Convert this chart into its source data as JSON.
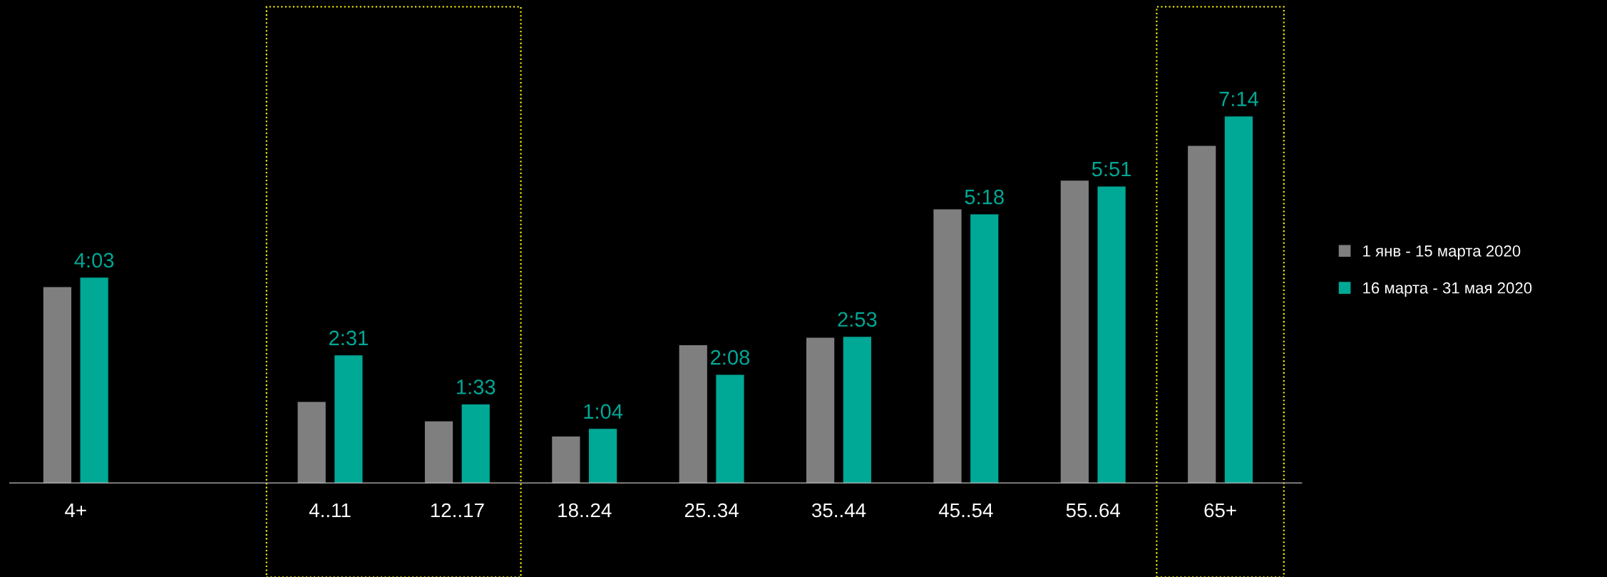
{
  "chart_data": {
    "type": "bar",
    "categories": [
      "4+",
      null,
      "4..11",
      "12..17",
      "18..24",
      "25..34",
      "35..44",
      "45..54",
      "55..64",
      "65+"
    ],
    "series": [
      {
        "name": "1 янв - 15 марта 2020",
        "color": "#7f7f7f",
        "values": [
          232,
          null,
          96,
          73,
          55,
          163,
          172,
          324,
          358,
          399
        ]
      },
      {
        "name": "16 марта - 31 мая 2020",
        "color": "#00a896",
        "values": [
          243,
          null,
          151,
          93,
          64,
          128,
          173,
          318,
          351,
          434
        ],
        "value_labels": [
          "4:03",
          null,
          "2:31",
          "1:33",
          "1:04",
          "2:08",
          "2:53",
          "5:18",
          "5:51",
          "7:14"
        ]
      }
    ],
    "legend": "right",
    "grid": false
  }
}
